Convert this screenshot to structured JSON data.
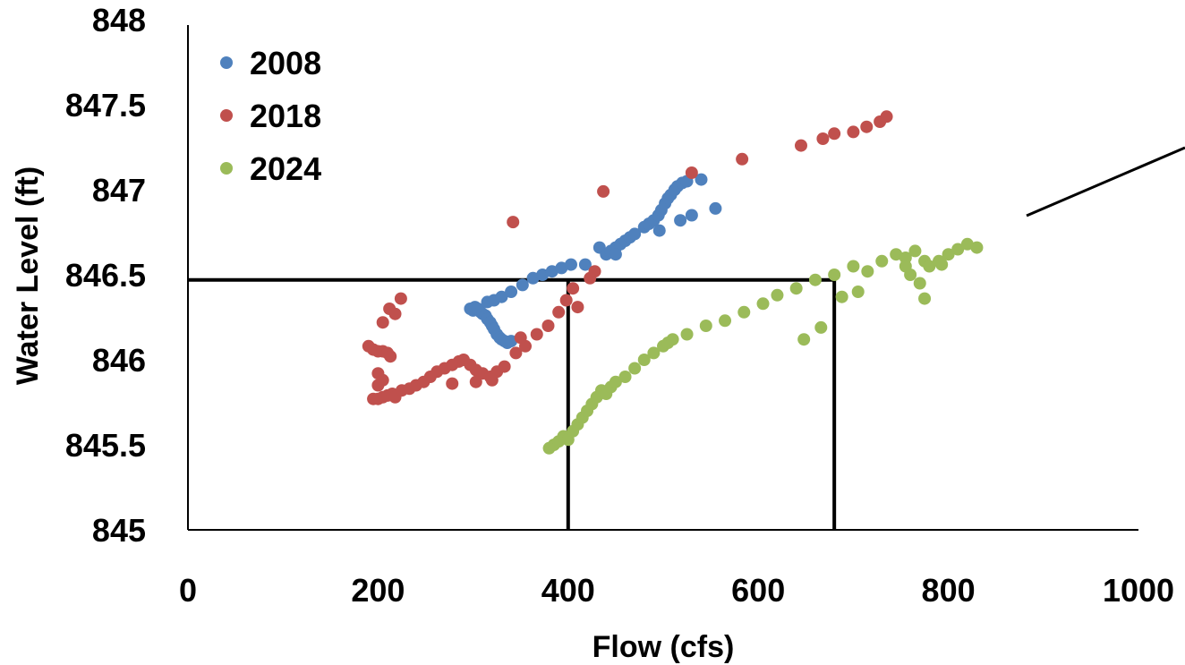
{
  "chart_data": {
    "type": "scatter",
    "xlabel": "Flow (cfs)",
    "ylabel": "Water Level (ft)",
    "xlim": [
      0,
      1000
    ],
    "ylim": [
      845,
      848
    ],
    "xticks": [
      "0",
      "200",
      "400",
      "600",
      "800",
      "1000"
    ],
    "yticks": [
      "845",
      "845.5",
      "846",
      "846.5",
      "847",
      "847.5",
      "848"
    ],
    "grid": false,
    "legend_position": "top-left",
    "series": [
      {
        "name": "2008",
        "color": "#4F81BD",
        "points": [
          [
            297,
            846.3
          ],
          [
            300,
            846.29
          ],
          [
            302,
            846.31
          ],
          [
            305,
            846.3
          ],
          [
            308,
            846.28
          ],
          [
            310,
            846.27
          ],
          [
            313,
            846.26
          ],
          [
            315,
            846.24
          ],
          [
            318,
            846.22
          ],
          [
            320,
            846.2
          ],
          [
            322,
            846.18
          ],
          [
            325,
            846.15
          ],
          [
            328,
            846.13
          ],
          [
            330,
            846.12
          ],
          [
            333,
            846.11
          ],
          [
            336,
            846.1
          ],
          [
            340,
            846.11
          ],
          [
            315,
            846.34
          ],
          [
            322,
            846.35
          ],
          [
            330,
            846.37
          ],
          [
            340,
            846.4
          ],
          [
            352,
            846.44
          ],
          [
            363,
            846.48
          ],
          [
            373,
            846.5
          ],
          [
            383,
            846.52
          ],
          [
            393,
            846.54
          ],
          [
            403,
            846.56
          ],
          [
            418,
            846.56
          ],
          [
            433,
            846.66
          ],
          [
            440,
            846.62
          ],
          [
            445,
            846.64
          ],
          [
            450,
            846.66
          ],
          [
            455,
            846.68
          ],
          [
            460,
            846.7
          ],
          [
            465,
            846.72
          ],
          [
            470,
            846.74
          ],
          [
            480,
            846.78
          ],
          [
            485,
            846.8
          ],
          [
            490,
            846.82
          ],
          [
            495,
            846.85
          ],
          [
            498,
            846.88
          ],
          [
            502,
            846.92
          ],
          [
            505,
            846.95
          ],
          [
            508,
            846.97
          ],
          [
            512,
            847.0
          ],
          [
            515,
            847.02
          ],
          [
            520,
            847.04
          ],
          [
            525,
            847.05
          ],
          [
            540,
            847.06
          ],
          [
            530,
            846.85
          ],
          [
            518,
            846.82
          ],
          [
            496,
            846.76
          ],
          [
            555,
            846.89
          ],
          [
            450,
            846.62
          ]
        ]
      },
      {
        "name": "2018",
        "color": "#C0504D",
        "points": [
          [
            190,
            846.08
          ],
          [
            195,
            846.06
          ],
          [
            200,
            846.05
          ],
          [
            205,
            846.05
          ],
          [
            210,
            846.04
          ],
          [
            213,
            846.02
          ],
          [
            200,
            845.92
          ],
          [
            205,
            845.88
          ],
          [
            200,
            845.85
          ],
          [
            195,
            845.77
          ],
          [
            200,
            845.77
          ],
          [
            205,
            845.78
          ],
          [
            210,
            845.79
          ],
          [
            215,
            845.8
          ],
          [
            218,
            845.78
          ],
          [
            225,
            845.82
          ],
          [
            233,
            845.83
          ],
          [
            240,
            845.85
          ],
          [
            248,
            845.87
          ],
          [
            255,
            845.9
          ],
          [
            262,
            845.93
          ],
          [
            270,
            845.95
          ],
          [
            278,
            845.97
          ],
          [
            285,
            845.99
          ],
          [
            290,
            846.0
          ],
          [
            297,
            845.97
          ],
          [
            303,
            845.94
          ],
          [
            310,
            845.92
          ],
          [
            318,
            845.9
          ],
          [
            325,
            845.93
          ],
          [
            333,
            845.96
          ],
          [
            345,
            846.04
          ],
          [
            355,
            846.08
          ],
          [
            367,
            846.15
          ],
          [
            379,
            846.2
          ],
          [
            390,
            846.28
          ],
          [
            398,
            846.35
          ],
          [
            405,
            846.42
          ],
          [
            410,
            846.31
          ],
          [
            423,
            846.48
          ],
          [
            428,
            846.52
          ],
          [
            437,
            846.99
          ],
          [
            342,
            846.81
          ],
          [
            350,
            846.13
          ],
          [
            303,
            845.87
          ],
          [
            278,
            845.86
          ],
          [
            320,
            845.88
          ],
          [
            205,
            846.22
          ],
          [
            212,
            846.3
          ],
          [
            218,
            846.27
          ],
          [
            224,
            846.36
          ],
          [
            530,
            847.1
          ],
          [
            583,
            847.18
          ],
          [
            645,
            847.26
          ],
          [
            668,
            847.3
          ],
          [
            680,
            847.33
          ],
          [
            700,
            847.34
          ],
          [
            714,
            847.37
          ],
          [
            728,
            847.4
          ],
          [
            735,
            847.43
          ]
        ]
      },
      {
        "name": "2024",
        "color": "#9BBB59",
        "points": [
          [
            380,
            845.48
          ],
          [
            385,
            845.5
          ],
          [
            390,
            845.52
          ],
          [
            395,
            845.55
          ],
          [
            400,
            845.53
          ],
          [
            405,
            845.58
          ],
          [
            410,
            845.62
          ],
          [
            415,
            845.66
          ],
          [
            420,
            845.7
          ],
          [
            425,
            845.74
          ],
          [
            430,
            845.78
          ],
          [
            435,
            845.82
          ],
          [
            440,
            845.8
          ],
          [
            445,
            845.84
          ],
          [
            450,
            845.87
          ],
          [
            460,
            845.9
          ],
          [
            470,
            845.95
          ],
          [
            480,
            846.0
          ],
          [
            490,
            846.04
          ],
          [
            500,
            846.08
          ],
          [
            505,
            846.1
          ],
          [
            510,
            846.12
          ],
          [
            525,
            846.15
          ],
          [
            545,
            846.2
          ],
          [
            565,
            846.23
          ],
          [
            585,
            846.28
          ],
          [
            605,
            846.33
          ],
          [
            620,
            846.38
          ],
          [
            640,
            846.42
          ],
          [
            660,
            846.47
          ],
          [
            680,
            846.5
          ],
          [
            700,
            846.55
          ],
          [
            715,
            846.52
          ],
          [
            730,
            846.58
          ],
          [
            745,
            846.62
          ],
          [
            755,
            846.6
          ],
          [
            765,
            846.64
          ],
          [
            775,
            846.58
          ],
          [
            780,
            846.55
          ],
          [
            790,
            846.58
          ],
          [
            800,
            846.62
          ],
          [
            810,
            846.65
          ],
          [
            820,
            846.68
          ],
          [
            830,
            846.66
          ],
          [
            760,
            846.5
          ],
          [
            770,
            846.45
          ],
          [
            775,
            846.36
          ],
          [
            705,
            846.4
          ],
          [
            688,
            846.37
          ],
          [
            666,
            846.19
          ],
          [
            648,
            846.12
          ],
          [
            755,
            846.55
          ],
          [
            793,
            846.56
          ]
        ]
      }
    ],
    "reference_lines": [
      {
        "points": [
          [
            0,
            846.47
          ],
          [
            680,
            846.47
          ]
        ]
      },
      {
        "points": [
          [
            400,
            846.47
          ],
          [
            400,
            845.0
          ]
        ]
      },
      {
        "points": [
          [
            680,
            846.47
          ],
          [
            680,
            845.0
          ]
        ]
      }
    ]
  }
}
